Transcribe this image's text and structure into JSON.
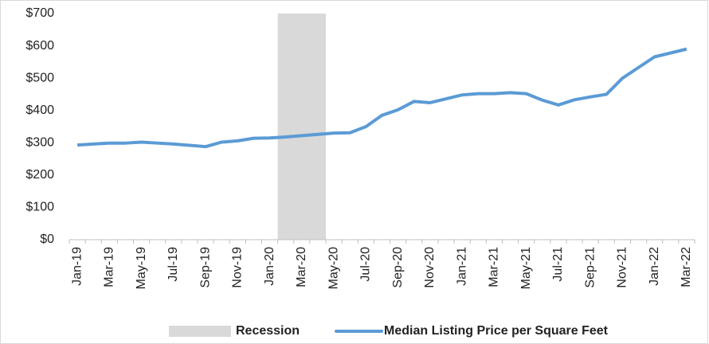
{
  "chart_data": {
    "type": "line",
    "categories": [
      "Jan-19",
      null,
      "Mar-19",
      null,
      "May-19",
      null,
      "Jul-19",
      null,
      "Sep-19",
      null,
      "Nov-19",
      null,
      "Jan-20",
      null,
      "Mar-20",
      null,
      "May-20",
      null,
      "Jul-20",
      null,
      "Sep-20",
      null,
      "Nov-20",
      null,
      "Jan-21",
      null,
      "Mar-21",
      null,
      "May-21",
      null,
      "Jul-21",
      null,
      "Sep-21",
      null,
      "Nov-21",
      null,
      "Jan-22",
      null,
      "Mar-22"
    ],
    "series": [
      {
        "name": "Recession",
        "type": "bar",
        "color": "#d9d9d9",
        "values": [
          null,
          null,
          null,
          null,
          null,
          null,
          null,
          null,
          null,
          null,
          null,
          null,
          null,
          700,
          700,
          700,
          null,
          null,
          null,
          null,
          null,
          null,
          null,
          null,
          null,
          null,
          null,
          null,
          null,
          null,
          null,
          null,
          null,
          null,
          null,
          null,
          null,
          null,
          null
        ]
      },
      {
        "name": "Median Listing Price per Square Feet",
        "type": "line",
        "color": "#5b9bd5",
        "values": [
          293,
          296,
          299,
          299,
          302,
          299,
          296,
          292,
          288,
          302,
          306,
          314,
          315,
          318,
          322,
          326,
          330,
          331,
          350,
          385,
          402,
          428,
          424,
          436,
          448,
          452,
          452,
          455,
          452,
          432,
          417,
          433,
          442,
          450,
          500,
          533,
          566,
          578,
          590
        ]
      }
    ],
    "ylim": [
      0,
      700
    ],
    "yticks": [
      {
        "value": 0,
        "label": "$0"
      },
      {
        "value": 100,
        "label": "$100"
      },
      {
        "value": 200,
        "label": "$200"
      },
      {
        "value": 300,
        "label": "$300"
      },
      {
        "value": 400,
        "label": "$400"
      },
      {
        "value": 500,
        "label": "$500"
      },
      {
        "value": 600,
        "label": "$600"
      },
      {
        "value": 700,
        "label": "$700"
      }
    ],
    "grid": false,
    "legend": "bottom"
  }
}
